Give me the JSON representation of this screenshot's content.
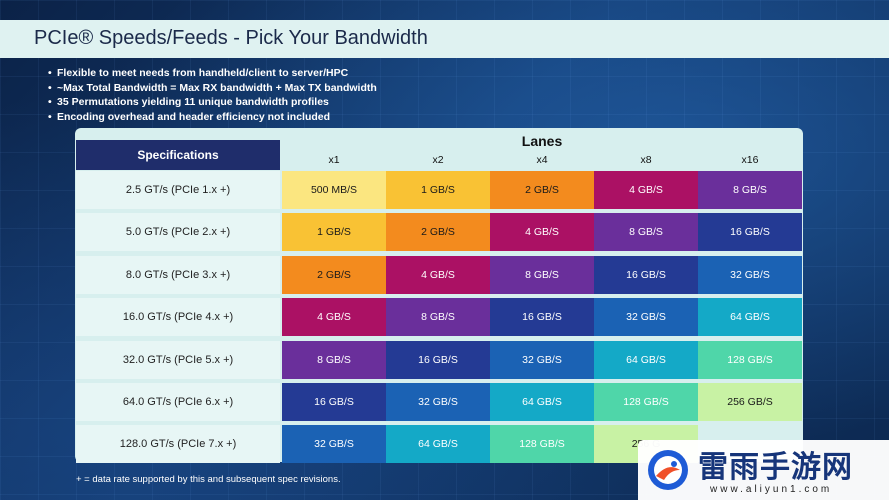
{
  "title": "PCIe® Speeds/Feeds - Pick Your Bandwidth",
  "bullets": [
    "Flexible to meet needs from handheld/client to server/HPC",
    "~Max Total Bandwidth = Max RX bandwidth + Max TX bandwidth",
    "35 Permutations yielding 11 unique bandwidth profiles",
    "Encoding overhead and header efficiency not included"
  ],
  "table": {
    "spec_header": "Specifications",
    "lanes_header": "Lanes",
    "lanes": [
      "x1",
      "x2",
      "x4",
      "x8",
      "x16"
    ],
    "rows": [
      {
        "label": "2.5 GT/s (PCIe 1.x +)",
        "cells": [
          "500 MB/S",
          "1 GB/S",
          "2 GB/S",
          "4 GB/S",
          "8 GB/S"
        ]
      },
      {
        "label": "5.0 GT/s (PCIe 2.x +)",
        "cells": [
          "1 GB/S",
          "2 GB/S",
          "4 GB/S",
          "8 GB/S",
          "16 GB/S"
        ]
      },
      {
        "label": "8.0 GT/s (PCIe 3.x +)",
        "cells": [
          "2 GB/S",
          "4 GB/S",
          "8 GB/S",
          "16 GB/S",
          "32 GB/S"
        ]
      },
      {
        "label": "16.0 GT/s (PCIe 4.x +)",
        "cells": [
          "4 GB/S",
          "8 GB/S",
          "16 GB/S",
          "32 GB/S",
          "64 GB/S"
        ]
      },
      {
        "label": "32.0 GT/s (PCIe 5.x +)",
        "cells": [
          "8 GB/S",
          "16 GB/S",
          "32 GB/S",
          "64 GB/S",
          "128 GB/S"
        ]
      },
      {
        "label": "64.0 GT/s (PCIe 6.x +)",
        "cells": [
          "16 GB/S",
          "32 GB/S",
          "64 GB/S",
          "128 GB/S",
          "256 GB/S"
        ]
      },
      {
        "label": "128.0 GT/s (PCIe 7.x +)",
        "cells": [
          "32 GB/S",
          "64 GB/S",
          "128 GB/S",
          "256 G",
          ""
        ]
      }
    ]
  },
  "colors": {
    "500 MB/S": "#fbe680",
    "1 GB/S": "#f9c234",
    "2 GB/S": "#f38b1e",
    "4 GB/S": "#ab1164",
    "8 GB/S": "#6a2f9b",
    "16 GB/S": "#243a94",
    "32 GB/S": "#1b62b4",
    "64 GB/S": "#14a9c7",
    "128 GB/S": "#4fd6a9",
    "256 GB/S": "#c8f2a4"
  },
  "footnote": "+ = data rate supported by this and subsequent spec revisions.",
  "watermark": {
    "text": "雷雨手游网",
    "url": "www.aliyun1.com"
  }
}
